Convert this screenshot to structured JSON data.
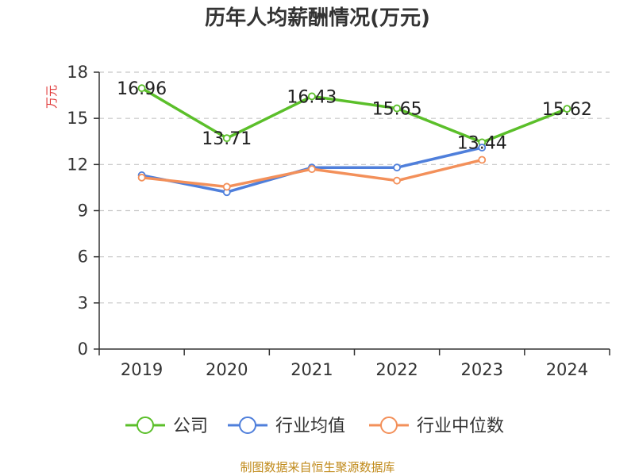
{
  "chart_data": {
    "type": "line",
    "title": "历年人均薪酬情况(万元)",
    "ylabel": "万元",
    "xlabel": "",
    "categories": [
      "2019",
      "2020",
      "2021",
      "2022",
      "2023",
      "2024"
    ],
    "ylim": [
      0,
      18
    ],
    "yticks": [
      0,
      3,
      6,
      9,
      12,
      15,
      18
    ],
    "grid": true,
    "legend_position": "bottom",
    "series": [
      {
        "name": "公司",
        "color": "#5bbf2a",
        "values": [
          16.96,
          13.71,
          16.43,
          15.65,
          13.44,
          15.62
        ],
        "labels": [
          "16.96",
          "13.71",
          "16.43",
          "15.65",
          "13.44",
          "15.62"
        ]
      },
      {
        "name": "行业均值",
        "color": "#4f7fdb",
        "values": [
          11.3,
          10.2,
          11.8,
          11.8,
          13.1,
          null
        ]
      },
      {
        "name": "行业中位数",
        "color": "#f3905a",
        "values": [
          11.15,
          10.55,
          11.7,
          10.95,
          12.3,
          null
        ]
      }
    ]
  },
  "source": "制图数据来自恒生聚源数据库"
}
